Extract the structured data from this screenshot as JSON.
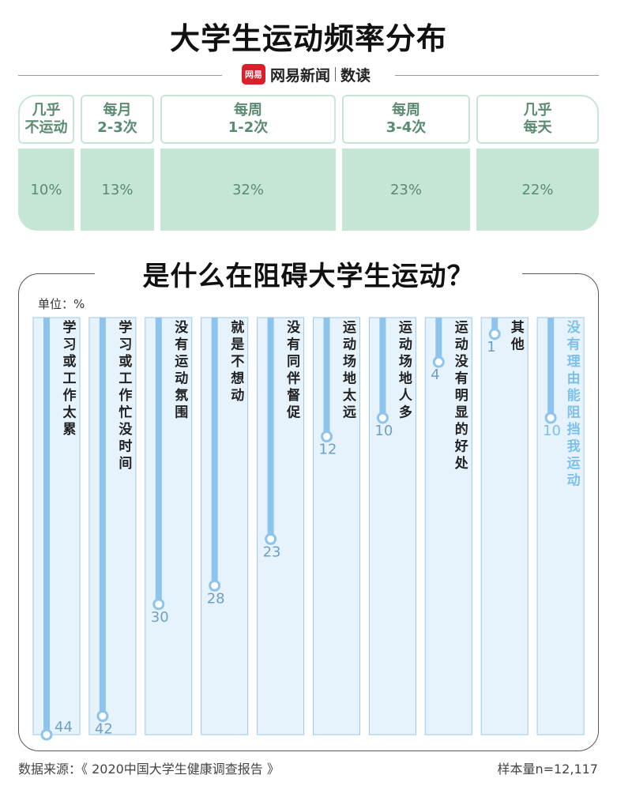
{
  "title": "大学生运动频率分布",
  "brand": {
    "logo": "网易",
    "name": "网易新闻",
    "sub": "数读"
  },
  "frequency": [
    {
      "label": "几乎\n不运动",
      "value": "10%"
    },
    {
      "label": "每月\n2-3次",
      "value": "13%"
    },
    {
      "label": "每周\n1-2次",
      "value": "32%"
    },
    {
      "label": "每周\n3-4次",
      "value": "23%"
    },
    {
      "label": "几乎\n每天",
      "value": "22%"
    }
  ],
  "panel_title": "是什么在阻碍大学生运动？",
  "chart_data": {
    "type": "bar",
    "title": "是什么在阻碍大学生运动？",
    "unit_label": "单位：%",
    "categories": [
      "学习或工作太累",
      "学习或工作忙没时间",
      "没有运动氛围",
      "就是不想动",
      "没有同伴督促",
      "运动场地太远",
      "运动场地人多",
      "运动没有明显的好处",
      "其他",
      "没有理由能阻挡我运动"
    ],
    "values": [
      44,
      42,
      30,
      28,
      23,
      12,
      10,
      4,
      1,
      10
    ],
    "highlight_index": 9,
    "ylim": [
      0,
      44
    ],
    "colors": {
      "bar": "#8cc4ee",
      "panel": "#e6f3fd",
      "panel_border": "#9ec9e8",
      "label": "#222222",
      "value": "#6e9fc4",
      "highlight": "#7cc0ee"
    }
  },
  "footer": {
    "source": "数据来源：《 2020中国大学生健康调查报告 》",
    "sample": "样本量n=12,117"
  }
}
